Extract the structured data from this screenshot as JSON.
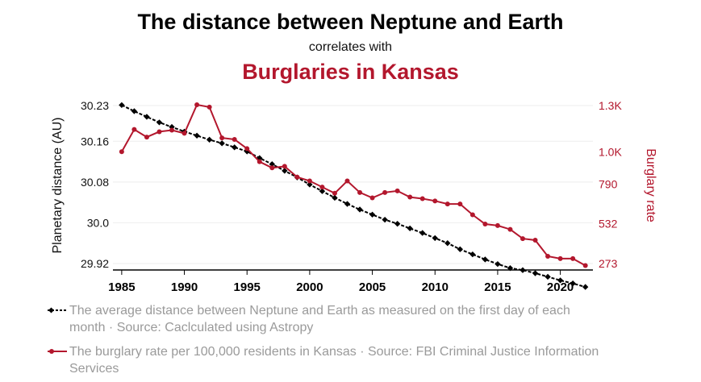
{
  "header": {
    "title": "The distance between Neptune and Earth",
    "subtitle": "correlates with",
    "title2": "Burglaries in Kansas"
  },
  "colors": {
    "series1": "#000000",
    "series2": "#b3172d",
    "grid": "#eeeeee"
  },
  "legend": {
    "series1": "The average distance between Neptune and Earth as measured on the first day of each month · Source: Caclculated using Astropy",
    "series2": "The burglary rate per 100,000 residents in Kansas · Source: FBI Criminal Justice Information Services"
  },
  "chart_data": {
    "type": "line",
    "x": [
      1985,
      1986,
      1987,
      1988,
      1989,
      1990,
      1991,
      1992,
      1993,
      1994,
      1995,
      1996,
      1997,
      1998,
      1999,
      2000,
      2001,
      2002,
      2003,
      2004,
      2005,
      2006,
      2007,
      2008,
      2009,
      2010,
      2011,
      2012,
      2013,
      2014,
      2015,
      2016,
      2017,
      2018,
      2019,
      2020,
      2021,
      2022
    ],
    "xticks": [
      1985,
      1990,
      1995,
      2000,
      2005,
      2010,
      2015,
      2020
    ],
    "xlim": [
      1984.3,
      2022.6
    ],
    "left_axis": {
      "label": "Planetary distance (AU)",
      "ticks": [
        29.92,
        30.0,
        30.08,
        30.16,
        30.23
      ],
      "tick_labels": [
        "29.92",
        "30.0",
        "30.08",
        "30.16",
        "30.23"
      ]
    },
    "right_axis": {
      "label": "Burglary rate",
      "ticks": [
        273,
        532,
        790,
        1000,
        1300
      ],
      "tick_labels": [
        "273",
        "532",
        "790",
        "1.0K",
        "1.3K"
      ]
    },
    "grid": true,
    "series": [
      {
        "axis": "left",
        "values": [
          30.231,
          30.219,
          30.208,
          30.197,
          30.188,
          30.179,
          30.171,
          30.163,
          30.156,
          30.148,
          30.14,
          30.127,
          30.115,
          30.102,
          30.089,
          30.075,
          30.062,
          30.049,
          30.037,
          30.026,
          30.016,
          30.006,
          29.998,
          29.989,
          29.98,
          29.97,
          29.96,
          29.948,
          29.938,
          29.928,
          29.919,
          29.911,
          29.907,
          29.901,
          29.894,
          29.887,
          29.881,
          29.874
        ]
      },
      {
        "axis": "right",
        "values": [
          1000,
          1145,
          1095,
          1130,
          1140,
          1120,
          1305,
          1290,
          1090,
          1080,
          1020,
          935,
          895,
          905,
          835,
          810,
          770,
          730,
          810,
          735,
          700,
          735,
          745,
          705,
          695,
          680,
          660,
          660,
          590,
          530,
          520,
          495,
          435,
          425,
          320,
          305,
          305,
          260
        ]
      }
    ]
  }
}
